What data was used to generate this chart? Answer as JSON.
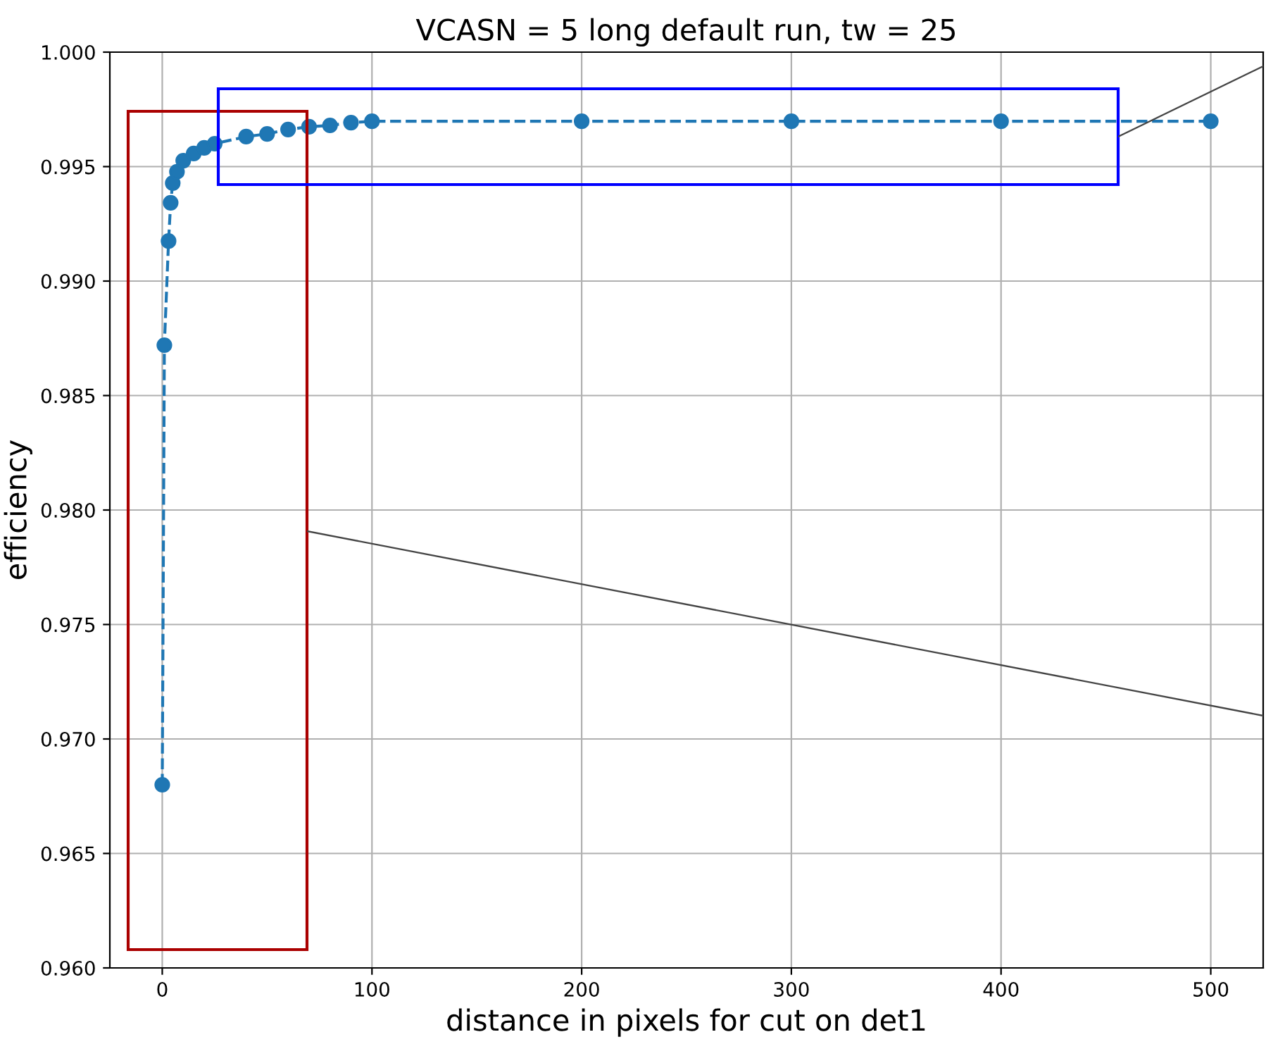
{
  "chart_data": {
    "type": "line",
    "title": "VCASN = 5 long default run, tw = 25",
    "xlabel": "distance in pixels for cut on det1",
    "ylabel": "efficiency",
    "x": [
      0,
      1,
      3,
      4,
      5,
      7,
      10,
      15,
      20,
      25,
      40,
      50,
      60,
      70,
      80,
      90,
      100,
      200,
      300,
      400,
      500
    ],
    "series": [
      {
        "color": "#1f77b4",
        "values": [
          0.968,
          0.9872,
          0.99175,
          0.99342,
          0.99428,
          0.99477,
          0.99526,
          0.99557,
          0.99582,
          0.996,
          0.99631,
          0.99643,
          0.99662,
          0.99674,
          0.9968,
          0.99692,
          0.99698,
          0.99698,
          0.99698,
          0.99698,
          0.99698
        ]
      }
    ],
    "xlim": [
      -25,
      525
    ],
    "xticks": [
      0,
      100,
      200,
      300,
      400,
      500
    ],
    "ylim": [
      0.96,
      1.0
    ],
    "yticks": [
      {
        "value": 0.96,
        "label": "0.960"
      },
      {
        "value": 0.965,
        "label": "0.965"
      },
      {
        "value": 0.97,
        "label": "0.970"
      },
      {
        "value": 0.975,
        "label": "0.975"
      },
      {
        "value": 0.98,
        "label": "0.980"
      },
      {
        "value": 0.985,
        "label": "0.985"
      },
      {
        "value": 0.99,
        "label": "0.990"
      },
      {
        "value": 0.995,
        "label": "0.995"
      },
      {
        "value": 1.0,
        "label": "1.000"
      }
    ],
    "grid": true,
    "marker": "circle",
    "line_style": "dashed"
  }
}
